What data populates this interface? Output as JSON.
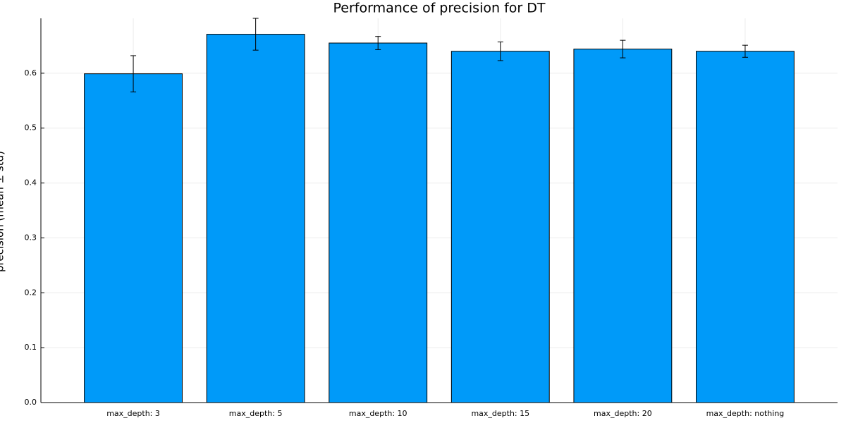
{
  "chart_data": {
    "type": "bar",
    "title": "Performance of precision for DT",
    "y_label": "precision (mean ± std)",
    "categories": [
      "max_depth: 3",
      "max_depth: 5",
      "max_depth: 10",
      "max_depth: 15",
      "max_depth: 20",
      "max_depth: nothing"
    ],
    "values": [
      0.599,
      0.671,
      0.655,
      0.64,
      0.644,
      0.64
    ],
    "errors": [
      0.033,
      0.029,
      0.012,
      0.017,
      0.016,
      0.011
    ],
    "color": "#009af9",
    "ylim": [
      0,
      0.7
    ],
    "yticks": [
      {
        "value": 0,
        "label": "0.0"
      },
      0.1,
      0.2,
      0.3,
      0.4,
      0.5,
      0.6
    ],
    "grid": true
  }
}
